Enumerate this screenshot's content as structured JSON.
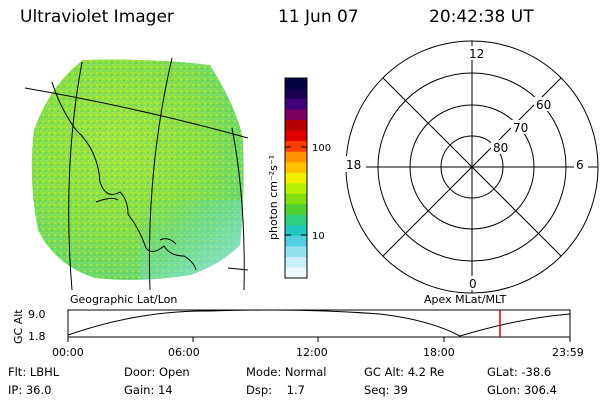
{
  "header": {
    "title": "Ultraviolet Imager",
    "date": "11 Jun 07",
    "time": "20:42:38 UT"
  },
  "colorbar": {
    "unit_label": "photon cm⁻²s⁻¹",
    "ticks": [
      "100",
      "10"
    ],
    "colors": [
      "#000040",
      "#1a0050",
      "#40007a",
      "#7a0060",
      "#b40000",
      "#e00000",
      "#ff4000",
      "#ff9000",
      "#ffc000",
      "#f0f000",
      "#b8f000",
      "#80e010",
      "#50d030",
      "#30d080",
      "#20c8c0",
      "#50d0e0",
      "#90e0f0",
      "#c8f0f8",
      "#eef8fc"
    ]
  },
  "polar_plot": {
    "mlt_labels": [
      "12",
      "18",
      "6",
      "0"
    ],
    "lat_labels": [
      "60",
      "70",
      "80"
    ]
  },
  "timeline": {
    "left_label": "Geographic Lat/Lon",
    "right_label": "Apex MLat/MLT",
    "axis_label": "GC Alt",
    "y_ticks": [
      "9.0",
      "1.8"
    ],
    "x_ticks": [
      "00:00",
      "06:00",
      "12:00",
      "18:00",
      "23:59"
    ],
    "marker_color": "#e00000"
  },
  "info": {
    "filter_label": "Flt:",
    "filter_value": "LBHL",
    "ip_label": "IP:",
    "ip_value": "36.0",
    "door_label": "Door:",
    "door_value": "Open",
    "gain_label": "Gain:",
    "gain_value": "14",
    "mode_label": "Mode:",
    "mode_value": "Normal",
    "dsp_label": "Dsp:",
    "dsp_value": "1.7",
    "gcalt_label": "GC Alt:",
    "gcalt_value": "4.2 Re",
    "seq_label": "Seq:",
    "seq_value": "39",
    "glat_label": "GLat:",
    "glat_value": "-38.6",
    "glon_label": "GLon:",
    "glon_value": "306.4"
  }
}
